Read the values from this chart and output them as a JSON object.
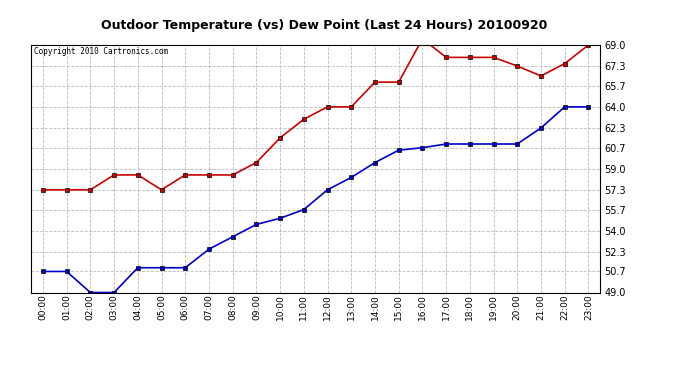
{
  "title": "Outdoor Temperature (vs) Dew Point (Last 24 Hours) 20100920",
  "copyright": "Copyright 2010 Cartronics.com",
  "x_labels": [
    "00:00",
    "01:00",
    "02:00",
    "03:00",
    "04:00",
    "05:00",
    "06:00",
    "07:00",
    "08:00",
    "09:00",
    "10:00",
    "11:00",
    "12:00",
    "13:00",
    "14:00",
    "15:00",
    "16:00",
    "17:00",
    "18:00",
    "19:00",
    "20:00",
    "21:00",
    "22:00",
    "23:00"
  ],
  "y_ticks": [
    49.0,
    50.7,
    52.3,
    54.0,
    55.7,
    57.3,
    59.0,
    60.7,
    62.3,
    64.0,
    65.7,
    67.3,
    69.0
  ],
  "ylim": [
    49.0,
    69.0
  ],
  "temp_color": "#cc0000",
  "dew_color": "#0000cc",
  "bg_color": "#ffffff",
  "grid_color": "#bbbbbb",
  "temp_data": [
    57.3,
    57.3,
    57.3,
    58.5,
    58.5,
    57.3,
    58.5,
    58.5,
    58.5,
    59.5,
    61.5,
    63.0,
    64.0,
    64.0,
    66.0,
    66.0,
    69.5,
    68.0,
    68.0,
    68.0,
    67.3,
    66.5,
    67.5,
    69.0
  ],
  "dew_data": [
    50.7,
    50.7,
    49.0,
    49.0,
    51.0,
    51.0,
    51.0,
    52.5,
    53.5,
    54.5,
    55.0,
    55.7,
    57.3,
    58.3,
    59.5,
    60.5,
    60.7,
    61.0,
    61.0,
    61.0,
    61.0,
    62.3,
    64.0,
    64.0
  ]
}
